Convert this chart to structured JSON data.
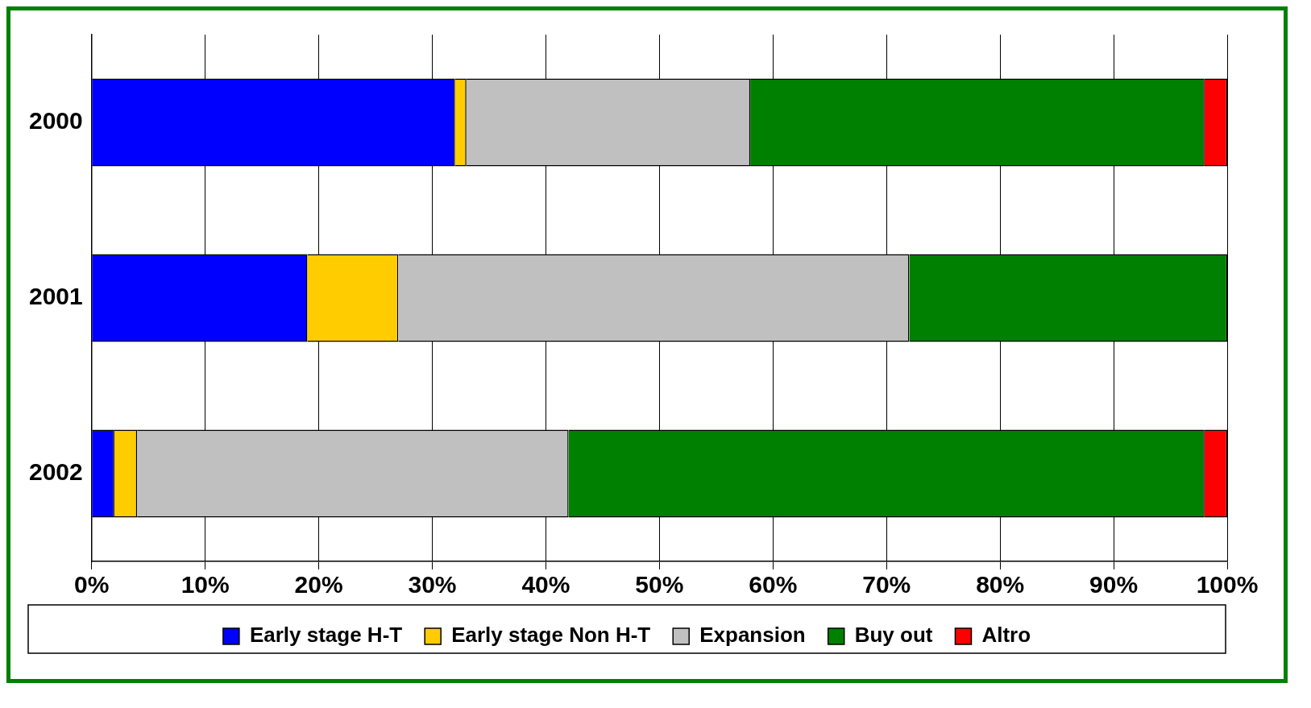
{
  "chart_data": {
    "type": "bar",
    "orientation": "horizontal",
    "stacked": true,
    "categories": [
      "2000",
      "2001",
      "2002"
    ],
    "series": [
      {
        "name": "Early stage H-T",
        "color": "#0000ff",
        "values": [
          32,
          19,
          2
        ]
      },
      {
        "name": "Early stage Non H-T",
        "color": "#ffcc00",
        "values": [
          1,
          8,
          2
        ]
      },
      {
        "name": "Expansion",
        "color": "#c0c0c0",
        "values": [
          25,
          45,
          38
        ]
      },
      {
        "name": "Buy out",
        "color": "#008000",
        "values": [
          40,
          28,
          56
        ]
      },
      {
        "name": "Altro",
        "color": "#ff0000",
        "values": [
          2,
          0,
          2
        ]
      }
    ],
    "xlim": [
      0,
      100
    ],
    "xticks": [
      {
        "value": 0,
        "label": "0%"
      },
      {
        "value": 10,
        "label": "10%"
      },
      {
        "value": 20,
        "label": "20%"
      },
      {
        "value": 30,
        "label": "30%"
      },
      {
        "value": 40,
        "label": "40%"
      },
      {
        "value": 50,
        "label": "50%"
      },
      {
        "value": 60,
        "label": "60%"
      },
      {
        "value": 70,
        "label": "70%"
      },
      {
        "value": 80,
        "label": "80%"
      },
      {
        "value": 90,
        "label": "90%"
      },
      {
        "value": 100,
        "label": "100%"
      }
    ],
    "grid": "x",
    "legend": "bottom"
  }
}
